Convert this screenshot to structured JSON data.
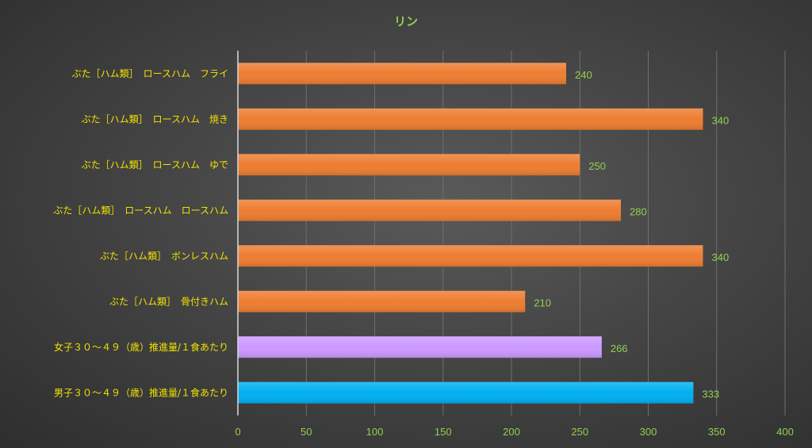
{
  "chart_data": {
    "type": "bar",
    "orientation": "horizontal",
    "title": "リン",
    "categories": [
      "ぶた［ハム類］　ロースハム　フライ",
      "ぶた［ハム類］　ロースハム　焼き",
      "ぶた［ハム類］　ロースハム　ゆで",
      "ぶた［ハム類］　ロースハム　ロースハム",
      "ぶた［ハム類］　ボンレスハム",
      "ぶた［ハム類］　骨付きハム",
      "女子３０～４９（歳）推進量/１食あたり",
      "男子３０～４９（歳）推進量/１食あたり"
    ],
    "values": [
      240,
      340,
      250,
      280,
      340,
      210,
      266,
      333
    ],
    "bar_colors": [
      "#ed7d31",
      "#ed7d31",
      "#ed7d31",
      "#ed7d31",
      "#ed7d31",
      "#ed7d31",
      "#cc99ff",
      "#00b0f0"
    ],
    "xlim": [
      0,
      400
    ],
    "xticks": [
      0,
      50,
      100,
      150,
      200,
      250,
      300,
      350,
      400
    ],
    "grid": true,
    "data_labels": true,
    "colors": {
      "title": "#92d050",
      "category_label": "#f2e200",
      "tick_label": "#92d050",
      "data_label": "#92d050",
      "grid": "#6f6f6f",
      "axis": "#d9d9d9"
    }
  }
}
